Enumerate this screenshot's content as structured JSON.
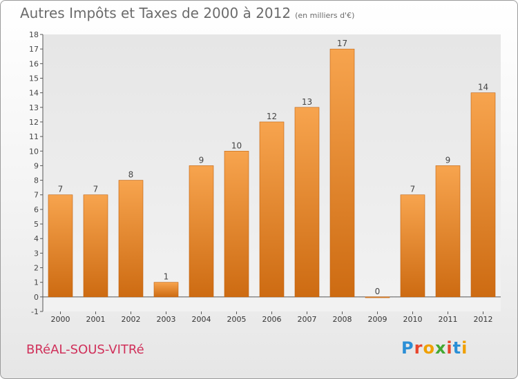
{
  "header": {
    "title": "Autres Impôts et Taxes de 2000 à 2012",
    "subtitle": "(en milliers d'€)"
  },
  "footer": {
    "commune": "BRéAL-SOUS-VITRé",
    "logo": "Proxiti",
    "logo_colors": [
      "#2b8fd6",
      "#e8452c",
      "#f0a000",
      "#44a832",
      "#e8452c",
      "#2b8fd6",
      "#f0a000"
    ]
  },
  "chart_data": {
    "type": "bar",
    "title": "Autres Impôts et Taxes de 2000 à 2012",
    "subtitle": "(en milliers d'€)",
    "categories": [
      "2000",
      "2001",
      "2002",
      "2003",
      "2004",
      "2005",
      "2006",
      "2007",
      "2008",
      "2009",
      "2010",
      "2011",
      "2012"
    ],
    "values": [
      7,
      7,
      8,
      1,
      9,
      10,
      12,
      13,
      17,
      0,
      7,
      9,
      14
    ],
    "data_labels": [
      "7",
      "7",
      "8",
      "1",
      "9",
      "10",
      "12",
      "13",
      "17",
      "0",
      "7",
      "9",
      "14"
    ],
    "ylim": [
      -1,
      18
    ],
    "yticks": [
      "-1",
      "0",
      "1",
      "2",
      "3",
      "4",
      "5",
      "6",
      "7",
      "8",
      "9",
      "10",
      "11",
      "12",
      "13",
      "14",
      "15",
      "16",
      "17",
      "18"
    ],
    "grid": false,
    "bar_color_light": "#f7a44e",
    "bar_color_dark": "#cd6b12"
  }
}
